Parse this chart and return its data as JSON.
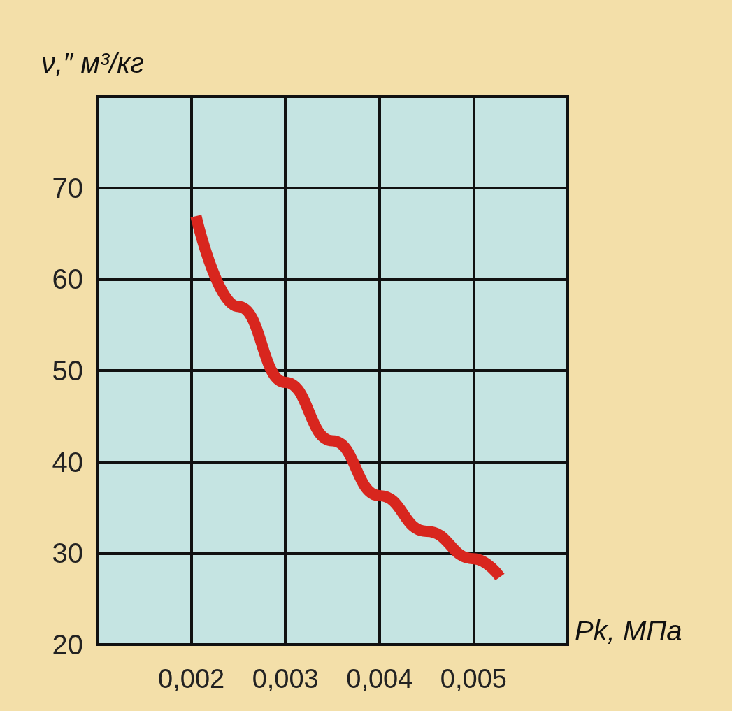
{
  "chart_data": {
    "type": "line",
    "xlabel": "Pk, МПа",
    "ylabel": "ν,″ м³/кг",
    "x": [
      0.00205,
      0.0025,
      0.003,
      0.0035,
      0.004,
      0.0045,
      0.005,
      0.00528
    ],
    "series": [
      {
        "color": "#d8261e",
        "values": [
          66.9,
          57,
          48.7,
          42.3,
          36.3,
          32.4,
          29.4,
          27.4
        ]
      }
    ],
    "xlim": [
      0.001,
      0.006
    ],
    "xticks": [
      {
        "value": 0.002,
        "label": "0,002"
      },
      {
        "value": 0.003,
        "label": "0,003"
      },
      {
        "value": 0.004,
        "label": "0,004"
      },
      {
        "value": 0.005,
        "label": "0,005"
      }
    ],
    "ylim": [
      20,
      80
    ],
    "yticks": [
      20,
      30,
      40,
      50,
      60,
      70,
      {
        "value": 80,
        "label": null
      }
    ],
    "grid": true,
    "marker": "none",
    "line_style": "solid"
  }
}
